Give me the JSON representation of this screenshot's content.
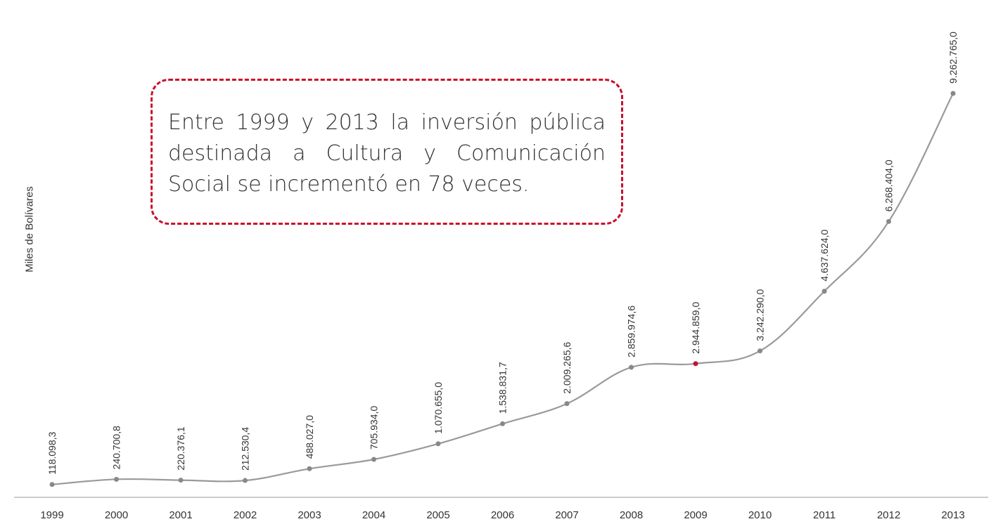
{
  "chart_data": {
    "type": "line",
    "title": "",
    "xlabel": "",
    "ylabel": "Miles de Bolívares",
    "categories": [
      "1999",
      "2000",
      "2001",
      "2002",
      "2003",
      "2004",
      "2005",
      "2006",
      "2007",
      "2008",
      "2009",
      "2010",
      "2011",
      "2012",
      "2013"
    ],
    "values": [
      118098.3,
      240700.8,
      220376.1,
      212530.4,
      488027.0,
      705934.0,
      1070655.0,
      1538831.7,
      2009265.6,
      2859974.6,
      2944859.0,
      3242290.0,
      4637624.0,
      6268404.0,
      9262765.0
    ],
    "value_labels": [
      "118.098,3",
      "240.700,8",
      "220.376,1",
      "212.530,4",
      "488.027,0",
      "705.934,0",
      "1.070.655,0",
      "1.538.831,7",
      "2.009.265,6",
      "2.859.974,6",
      "2.944.859,0",
      "3.242.290,0",
      "4.637.624,0",
      "6.268.404,0",
      "9.262.765,0"
    ],
    "ylim": [
      0,
      9400000
    ],
    "grid": false,
    "legend": "none",
    "colors": {
      "line": "#9a9a9a",
      "marker": "#888888",
      "highlight_marker": "#c8102e",
      "axis": "#bbbbbb",
      "annotation_border": "#c8102e"
    },
    "annotation": {
      "text": "Entre 1999 y 2013 la inversión pública destinada a Cultura y Comunicación Social se incrementó en 78 veces."
    }
  }
}
